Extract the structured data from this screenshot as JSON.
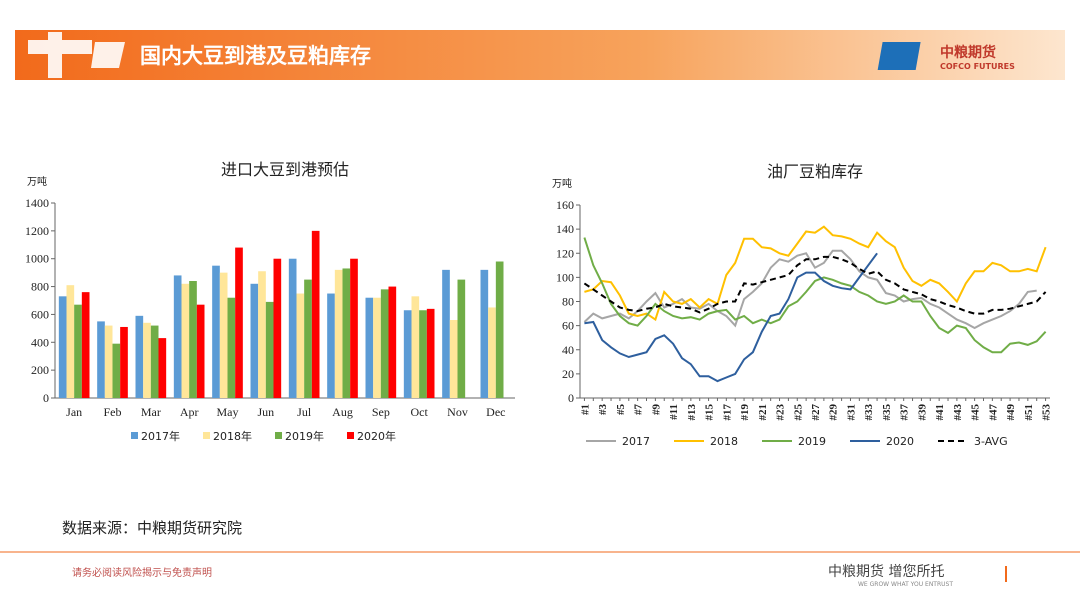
{
  "header": {
    "title": "国内大豆到港及豆粕库存",
    "logo_cn": "中粮期货",
    "logo_en": "COFCO FUTURES"
  },
  "source": "数据来源：中粮期货研究院",
  "footer": {
    "disclaimer": "请务必阅读风险揭示与免责声明",
    "slogan_cn": "中粮期货 增您所托",
    "slogan_en": "WE GROW WHAT YOU ENTRUST"
  },
  "chart_data": [
    {
      "type": "bar",
      "title": "进口大豆到港预估",
      "y_label": "万吨",
      "categories": [
        "Jan",
        "Feb",
        "Mar",
        "Apr",
        "May",
        "Jun",
        "Jul",
        "Aug",
        "Sep",
        "Oct",
        "Nov",
        "Dec"
      ],
      "series": [
        {
          "name": "2017年",
          "color": "#5b9bd5",
          "values": [
            730,
            550,
            590,
            880,
            950,
            820,
            1000,
            750,
            720,
            630,
            920,
            920
          ]
        },
        {
          "name": "2018年",
          "color": "#ffe699",
          "values": [
            810,
            520,
            540,
            820,
            900,
            910,
            750,
            920,
            720,
            730,
            560,
            650
          ]
        },
        {
          "name": "2019年",
          "color": "#70ad47",
          "values": [
            670,
            390,
            520,
            840,
            720,
            690,
            850,
            930,
            780,
            630,
            850,
            980
          ]
        },
        {
          "name": "2020年",
          "color": "#ff0000",
          "values": [
            760,
            510,
            430,
            670,
            1080,
            1000,
            1200,
            1000,
            800,
            640,
            null,
            null
          ]
        }
      ],
      "ylim": [
        0,
        1400
      ],
      "yticks": [
        0,
        200,
        400,
        600,
        800,
        1000,
        1200,
        1400
      ],
      "legend": "bottom"
    },
    {
      "type": "line",
      "title": "油厂豆粕库存",
      "y_label": "万吨",
      "categories": [
        "#1",
        null,
        "#3",
        null,
        "#5",
        null,
        "#7",
        null,
        "#9",
        null,
        "#11",
        null,
        "#13",
        null,
        "#15",
        null,
        "#17",
        null,
        "#19",
        null,
        "#21",
        null,
        "#23",
        null,
        "#25",
        null,
        "#27",
        null,
        "#29",
        null,
        "#31",
        null,
        "#33",
        null,
        "#35",
        null,
        "#37",
        null,
        "#39",
        null,
        "#41",
        null,
        "#43",
        null,
        "#45",
        null,
        "#47",
        null,
        "#49",
        null,
        "#51",
        null,
        "#53"
      ],
      "series": [
        {
          "name": "2017",
          "color": "#a6a6a6",
          "values": [
            63,
            70,
            66,
            68,
            70,
            66,
            72,
            80,
            87,
            75,
            78,
            82,
            75,
            74,
            78,
            72,
            68,
            60,
            82,
            88,
            95,
            108,
            115,
            113,
            118,
            120,
            108,
            112,
            122,
            122,
            115,
            105,
            100,
            98,
            87,
            85,
            80,
            82,
            83,
            78,
            75,
            70,
            65,
            62,
            58,
            62,
            65,
            68,
            72,
            78,
            88,
            89,
            null
          ]
        },
        {
          "name": "2018",
          "color": "#ffc000",
          "values": [
            88,
            90,
            97,
            96,
            85,
            70,
            68,
            70,
            65,
            88,
            80,
            78,
            82,
            75,
            82,
            78,
            102,
            112,
            132,
            132,
            125,
            124,
            120,
            118,
            128,
            138,
            137,
            142,
            135,
            134,
            132,
            128,
            125,
            137,
            130,
            125,
            108,
            97,
            93,
            98,
            95,
            88,
            80,
            95,
            105,
            105,
            112,
            110,
            105,
            105,
            107,
            105,
            125
          ]
        },
        {
          "name": "2019",
          "color": "#70ad47",
          "values": [
            133,
            110,
            95,
            78,
            68,
            62,
            60,
            68,
            78,
            72,
            68,
            66,
            67,
            65,
            70,
            72,
            73,
            65,
            68,
            62,
            65,
            62,
            65,
            76,
            80,
            88,
            97,
            100,
            98,
            95,
            93,
            88,
            85,
            80,
            78,
            80,
            85,
            80,
            80,
            68,
            58,
            54,
            60,
            58,
            48,
            42,
            38,
            38,
            45,
            46,
            44,
            47,
            55
          ]
        },
        {
          "name": "2020",
          "color": "#2e5f9e",
          "values": [
            62,
            63,
            48,
            42,
            37,
            34,
            36,
            38,
            49,
            52,
            45,
            33,
            28,
            18,
            18,
            14,
            17,
            20,
            32,
            38,
            55,
            68,
            70,
            82,
            100,
            104,
            104,
            97,
            93,
            91,
            90,
            100,
            110,
            120,
            null,
            null,
            null,
            null,
            null,
            null,
            null,
            null,
            null,
            null,
            null,
            null,
            null,
            null,
            null,
            null,
            null,
            null,
            null
          ]
        },
        {
          "name": "3-AVG",
          "color": "#000000",
          "line_style": "dashed",
          "values": [
            95,
            90,
            85,
            80,
            75,
            73,
            72,
            74,
            75,
            78,
            76,
            75,
            74,
            71,
            74,
            78,
            80,
            80,
            95,
            94,
            96,
            98,
            100,
            102,
            110,
            115,
            115,
            117,
            117,
            115,
            112,
            107,
            103,
            105,
            98,
            95,
            90,
            88,
            86,
            82,
            80,
            77,
            75,
            72,
            70,
            70,
            73,
            73,
            74,
            76,
            78,
            80,
            88
          ]
        }
      ],
      "ylim": [
        0,
        160
      ],
      "yticks": [
        0,
        20,
        40,
        60,
        80,
        100,
        120,
        140,
        160
      ],
      "legend": "bottom"
    }
  ]
}
